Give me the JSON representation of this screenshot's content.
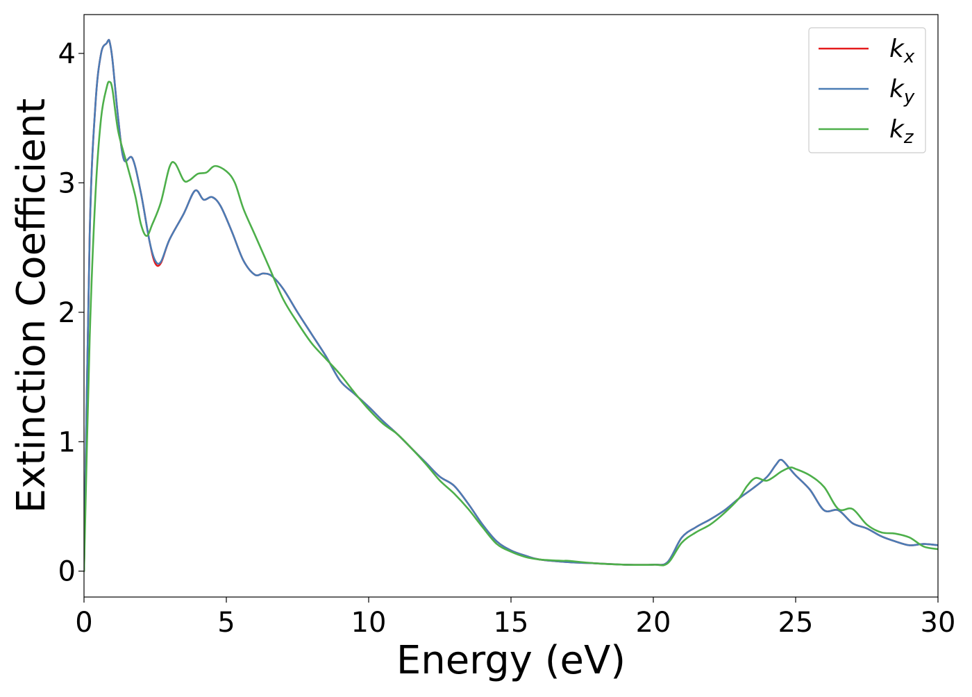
{
  "chart_data": {
    "type": "line",
    "title": "",
    "xlabel": "Energy (eV)",
    "ylabel": "Extinction Coefficient",
    "xlim": [
      0,
      30
    ],
    "ylim": [
      -0.2,
      4.3
    ],
    "xticks": [
      0,
      5,
      10,
      15,
      20,
      25,
      30
    ],
    "xtick_labels": [
      "0",
      "5",
      "10",
      "15",
      "20",
      "25",
      "30"
    ],
    "yticks": [
      0,
      1,
      2,
      3,
      4
    ],
    "ytick_labels": [
      "0",
      "1",
      "2",
      "3",
      "4"
    ],
    "grid": false,
    "legend_position": "top-right",
    "series": [
      {
        "name": "k_x",
        "label_base": "k",
        "label_sub": "x",
        "color": "#e41a1c",
        "x": [
          0,
          0.2,
          0.4,
          0.6,
          0.8,
          0.85,
          0.9,
          1.0,
          1.2,
          1.4,
          1.7,
          2.0,
          2.3,
          2.5,
          2.7,
          3.0,
          3.5,
          3.9,
          4.2,
          4.5,
          4.8,
          5.2,
          5.6,
          6.0,
          6.3,
          6.6,
          7.0,
          7.5,
          8.0,
          8.5,
          9.0,
          9.5,
          10.0,
          10.5,
          11.0,
          11.5,
          12.0,
          12.5,
          13.0,
          13.5,
          14.0,
          14.5,
          15.0,
          15.5,
          16.0,
          17.0,
          18.0,
          19.0,
          20.0,
          20.5,
          21.0,
          21.5,
          22.0,
          22.5,
          23.0,
          23.5,
          24.0,
          24.3,
          24.5,
          24.8,
          25.0,
          25.5,
          26.0,
          26.5,
          27.0,
          27.5,
          28.0,
          28.5,
          29.0,
          29.5,
          30.0
        ],
        "y": [
          0.0,
          2.6,
          3.6,
          4.0,
          4.08,
          4.1,
          4.09,
          3.95,
          3.5,
          3.18,
          3.19,
          2.92,
          2.55,
          2.38,
          2.38,
          2.56,
          2.76,
          2.94,
          2.87,
          2.89,
          2.82,
          2.62,
          2.4,
          2.29,
          2.3,
          2.28,
          2.18,
          2.0,
          1.83,
          1.66,
          1.47,
          1.37,
          1.27,
          1.16,
          1.06,
          0.95,
          0.84,
          0.73,
          0.66,
          0.52,
          0.36,
          0.23,
          0.16,
          0.12,
          0.09,
          0.07,
          0.06,
          0.05,
          0.05,
          0.07,
          0.26,
          0.34,
          0.4,
          0.47,
          0.56,
          0.64,
          0.73,
          0.82,
          0.86,
          0.79,
          0.74,
          0.63,
          0.47,
          0.47,
          0.37,
          0.33,
          0.27,
          0.23,
          0.2,
          0.21,
          0.2
        ]
      },
      {
        "name": "k_y",
        "label_base": "k",
        "label_sub": "y",
        "color": "#4a7cb5",
        "x": [
          0,
          0.2,
          0.4,
          0.6,
          0.8,
          0.85,
          0.9,
          1.0,
          1.2,
          1.4,
          1.7,
          2.0,
          2.3,
          2.5,
          2.7,
          3.0,
          3.5,
          3.9,
          4.2,
          4.5,
          4.8,
          5.2,
          5.6,
          6.0,
          6.3,
          6.6,
          7.0,
          7.5,
          8.0,
          8.5,
          9.0,
          9.5,
          10.0,
          10.5,
          11.0,
          11.5,
          12.0,
          12.5,
          13.0,
          13.5,
          14.0,
          14.5,
          15.0,
          15.5,
          16.0,
          17.0,
          18.0,
          19.0,
          20.0,
          20.5,
          21.0,
          21.5,
          22.0,
          22.5,
          23.0,
          23.5,
          24.0,
          24.3,
          24.5,
          24.8,
          25.0,
          25.5,
          26.0,
          26.5,
          27.0,
          27.5,
          28.0,
          28.5,
          29.0,
          29.5,
          30.0
        ],
        "y": [
          0.0,
          2.6,
          3.6,
          4.0,
          4.08,
          4.1,
          4.09,
          3.95,
          3.5,
          3.18,
          3.19,
          2.92,
          2.55,
          2.4,
          2.39,
          2.56,
          2.76,
          2.94,
          2.87,
          2.89,
          2.82,
          2.62,
          2.4,
          2.29,
          2.3,
          2.28,
          2.18,
          2.0,
          1.83,
          1.66,
          1.47,
          1.37,
          1.27,
          1.16,
          1.06,
          0.95,
          0.84,
          0.73,
          0.66,
          0.52,
          0.36,
          0.23,
          0.16,
          0.12,
          0.09,
          0.07,
          0.06,
          0.05,
          0.05,
          0.07,
          0.26,
          0.34,
          0.4,
          0.47,
          0.56,
          0.64,
          0.73,
          0.82,
          0.86,
          0.79,
          0.74,
          0.63,
          0.47,
          0.47,
          0.37,
          0.33,
          0.27,
          0.23,
          0.2,
          0.21,
          0.2
        ]
      },
      {
        "name": "k_z",
        "label_base": "k",
        "label_sub": "z",
        "color": "#4daf4a",
        "x": [
          0,
          0.2,
          0.4,
          0.6,
          0.8,
          0.9,
          1.0,
          1.2,
          1.5,
          1.8,
          2.0,
          2.2,
          2.4,
          2.7,
          3.0,
          3.2,
          3.5,
          3.7,
          4.0,
          4.3,
          4.6,
          5.0,
          5.3,
          5.6,
          6.0,
          6.5,
          7.0,
          7.5,
          8.0,
          8.5,
          9.0,
          9.5,
          10.0,
          10.5,
          11.0,
          11.5,
          12.0,
          12.5,
          13.0,
          13.5,
          14.0,
          14.5,
          15.0,
          15.5,
          16.0,
          16.8,
          17.0,
          18.0,
          19.0,
          20.0,
          20.5,
          21.0,
          21.5,
          22.0,
          22.5,
          23.0,
          23.3,
          23.6,
          24.0,
          24.5,
          24.8,
          25.0,
          25.5,
          26.0,
          26.5,
          27.0,
          27.5,
          28.0,
          28.5,
          29.0,
          29.5,
          30.0
        ],
        "y": [
          0.0,
          1.8,
          2.9,
          3.5,
          3.74,
          3.78,
          3.72,
          3.4,
          3.15,
          2.9,
          2.68,
          2.59,
          2.68,
          2.85,
          3.12,
          3.15,
          3.02,
          3.02,
          3.07,
          3.08,
          3.13,
          3.09,
          3.0,
          2.8,
          2.6,
          2.35,
          2.1,
          1.92,
          1.76,
          1.64,
          1.52,
          1.38,
          1.25,
          1.14,
          1.06,
          0.95,
          0.83,
          0.7,
          0.6,
          0.48,
          0.34,
          0.21,
          0.15,
          0.11,
          0.09,
          0.08,
          0.08,
          0.06,
          0.05,
          0.05,
          0.06,
          0.22,
          0.3,
          0.36,
          0.45,
          0.56,
          0.66,
          0.72,
          0.7,
          0.77,
          0.8,
          0.79,
          0.74,
          0.65,
          0.48,
          0.48,
          0.36,
          0.3,
          0.29,
          0.26,
          0.19,
          0.17
        ]
      }
    ]
  }
}
